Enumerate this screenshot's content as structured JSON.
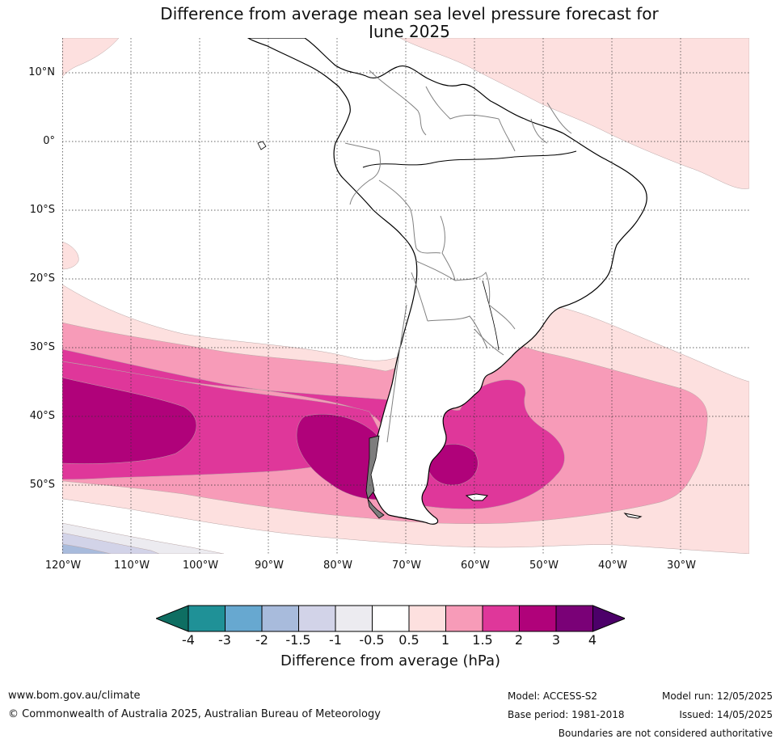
{
  "title_line1": "Difference from average mean sea level pressure forecast for",
  "title_line2": "June 2025",
  "map": {
    "projection": "equirectangular",
    "lon_range": [
      "120°W",
      "20°W"
    ],
    "lat_range": [
      "15°N",
      "60°S"
    ],
    "gridlines": "dotted",
    "lat_labels": [
      "10°N",
      "0°",
      "10°S",
      "20°S",
      "30°S",
      "40°S",
      "50°S"
    ],
    "lon_labels": [
      "120°W",
      "110°W",
      "100°W",
      "90°W",
      "80°W",
      "70°W",
      "60°W",
      "50°W",
      "40°W",
      "30°W"
    ],
    "land_fill": "#ffffff",
    "coastline_color": "#000000",
    "boundary_color": "#808080"
  },
  "colorbar": {
    "ticks": [
      "-4",
      "-3",
      "-2",
      "-1.5",
      "-1",
      "-0.5",
      "0.5",
      "1",
      "1.5",
      "2",
      "3",
      "4"
    ],
    "colors": [
      "#0e6e62",
      "#1f9197",
      "#67a8d0",
      "#a8bbdc",
      "#d2d3e8",
      "#ecebf0",
      "#ffffff",
      "#fde0df",
      "#f79bb8",
      "#df379a",
      "#b0027a",
      "#7a0177",
      "#4c0069"
    ],
    "label": "Difference from average (hPa)"
  },
  "footer": {
    "url": "www.bom.gov.au/climate",
    "copyright": "© Commonwealth of Australia 2025, Australian Bureau of Meteorology",
    "model": "Model: ACCESS-S2",
    "base_period": "Base period: 1981-2018",
    "model_run": "Model run: 12/05/2025",
    "issued": "Issued: 14/05/2025",
    "disclaimer": "Boundaries are not considered authoritative"
  }
}
